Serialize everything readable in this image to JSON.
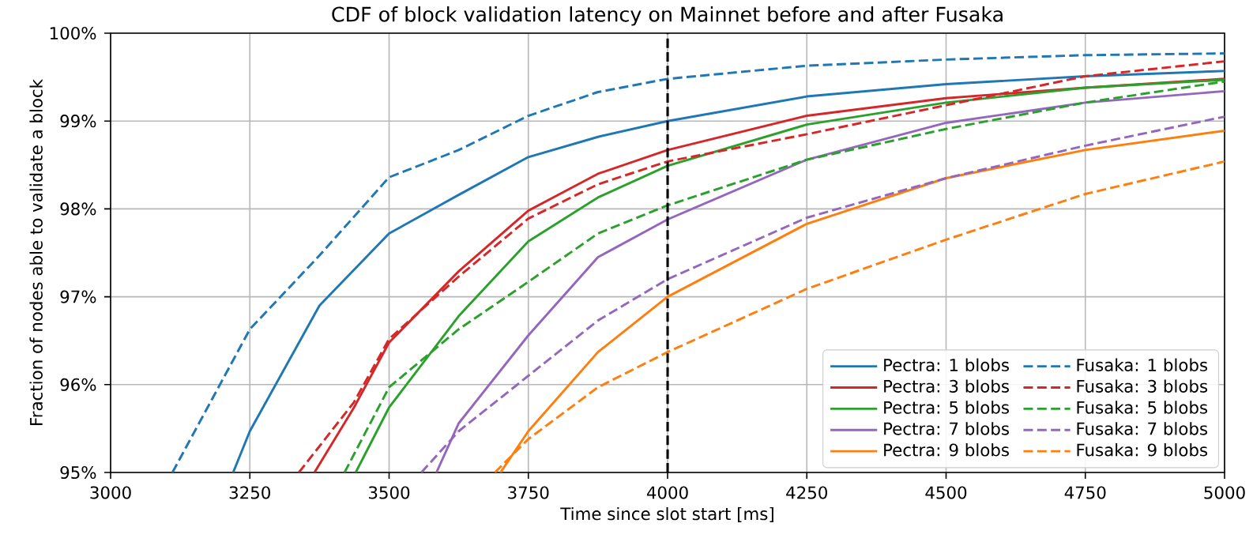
{
  "chart_data": {
    "type": "line",
    "title": "CDF of block validation latency on Mainnet before and after Fusaka",
    "xlabel": "Time since slot start [ms]",
    "ylabel": "Fraction of nodes able to validate a block",
    "xlim": [
      3000,
      5000
    ],
    "xticks": [
      3000,
      3250,
      3500,
      3750,
      4000,
      4250,
      4500,
      4750,
      5000
    ],
    "ylim": [
      95,
      100
    ],
    "yticks": [
      {
        "value": 95,
        "label": "95%"
      },
      {
        "value": 96,
        "label": "96%"
      },
      {
        "value": 97,
        "label": "97%"
      },
      {
        "value": 98,
        "label": "98%"
      },
      {
        "value": 99,
        "label": "99%"
      },
      {
        "value": 100,
        "label": "100%"
      }
    ],
    "grid": true,
    "legend": "bottom right",
    "marker": "none",
    "series": [
      {
        "name": "Pectra: 1 blobs",
        "color": "#1f77b4",
        "line_style": "solid",
        "x": [
          3220,
          3250,
          3375,
          3500,
          3625,
          3750,
          3875,
          4000,
          4250,
          4500,
          4750,
          5000
        ],
        "values": [
          95,
          95.47,
          96.9,
          97.72,
          98.16,
          98.59,
          98.82,
          99.0,
          99.28,
          99.42,
          99.51,
          99.57
        ]
      },
      {
        "name": "Pectra: 3 blobs",
        "color": "#d62728",
        "line_style": "solid",
        "x": [
          3366,
          3437,
          3500,
          3625,
          3750,
          3875,
          4000,
          4250,
          4500,
          4750,
          5000
        ],
        "values": [
          95,
          95.74,
          96.48,
          97.29,
          97.98,
          98.4,
          98.67,
          99.06,
          99.26,
          99.38,
          99.48
        ]
      },
      {
        "name": "Pectra: 5 blobs",
        "color": "#2ca02c",
        "line_style": "solid",
        "x": [
          3440,
          3500,
          3625,
          3750,
          3875,
          4000,
          4250,
          4500,
          4750,
          5000
        ],
        "values": [
          95,
          95.74,
          96.78,
          97.63,
          98.13,
          98.49,
          98.96,
          99.21,
          99.38,
          99.47
        ]
      },
      {
        "name": "Pectra: 7 blobs",
        "color": "#9467bd",
        "line_style": "solid",
        "x": [
          3585,
          3625,
          3750,
          3875,
          4000,
          4250,
          4500,
          4750,
          5000
        ],
        "values": [
          95,
          95.56,
          96.56,
          97.45,
          97.88,
          98.56,
          98.98,
          99.21,
          99.34
        ]
      },
      {
        "name": "Pectra: 9 blobs",
        "color": "#ff7f0e",
        "line_style": "solid",
        "x": [
          3700,
          3750,
          3875,
          4000,
          4250,
          4500,
          4750,
          5000
        ],
        "values": [
          95,
          95.47,
          96.37,
          97.0,
          97.83,
          98.35,
          98.67,
          98.89
        ]
      },
      {
        "name": "Fusaka: 1 blobs",
        "color": "#1f77b4",
        "line_style": "dashed",
        "x": [
          3111,
          3250,
          3375,
          3500,
          3625,
          3750,
          3875,
          4000,
          4250,
          4500,
          4750,
          5000
        ],
        "values": [
          95,
          96.63,
          97.47,
          98.36,
          98.67,
          99.06,
          99.33,
          99.48,
          99.63,
          99.7,
          99.75,
          99.77
        ]
      },
      {
        "name": "Fusaka: 3 blobs",
        "color": "#d62728",
        "line_style": "dashed",
        "x": [
          3338,
          3437,
          3500,
          3625,
          3750,
          3875,
          4000,
          4250,
          4500,
          4750,
          5000
        ],
        "values": [
          95,
          95.8,
          96.52,
          97.23,
          97.89,
          98.28,
          98.54,
          98.85,
          99.18,
          99.51,
          99.68
        ]
      },
      {
        "name": "Fusaka: 5 blobs",
        "color": "#2ca02c",
        "line_style": "dashed",
        "x": [
          3420,
          3500,
          3625,
          3750,
          3875,
          4000,
          4250,
          4500,
          4750,
          5000
        ],
        "values": [
          95,
          95.97,
          96.63,
          97.17,
          97.72,
          98.04,
          98.56,
          98.91,
          99.21,
          99.45
        ]
      },
      {
        "name": "Fusaka: 7 blobs",
        "color": "#9467bd",
        "line_style": "dashed",
        "x": [
          3558,
          3625,
          3750,
          3875,
          4000,
          4250,
          4500,
          4750,
          5000
        ],
        "values": [
          95,
          95.47,
          96.1,
          96.73,
          97.2,
          97.9,
          98.35,
          98.72,
          99.05
        ]
      },
      {
        "name": "Fusaka: 9 blobs",
        "color": "#ff7f0e",
        "line_style": "dashed",
        "x": [
          3690,
          3750,
          3875,
          4000,
          4250,
          4500,
          4750,
          5000
        ],
        "values": [
          95,
          95.38,
          95.97,
          96.37,
          97.09,
          97.65,
          98.17,
          98.54
        ]
      }
    ],
    "ref_lines": [
      {
        "axis": "x",
        "value": 4000,
        "color": "#000000",
        "line_style": "dashed"
      }
    ]
  }
}
